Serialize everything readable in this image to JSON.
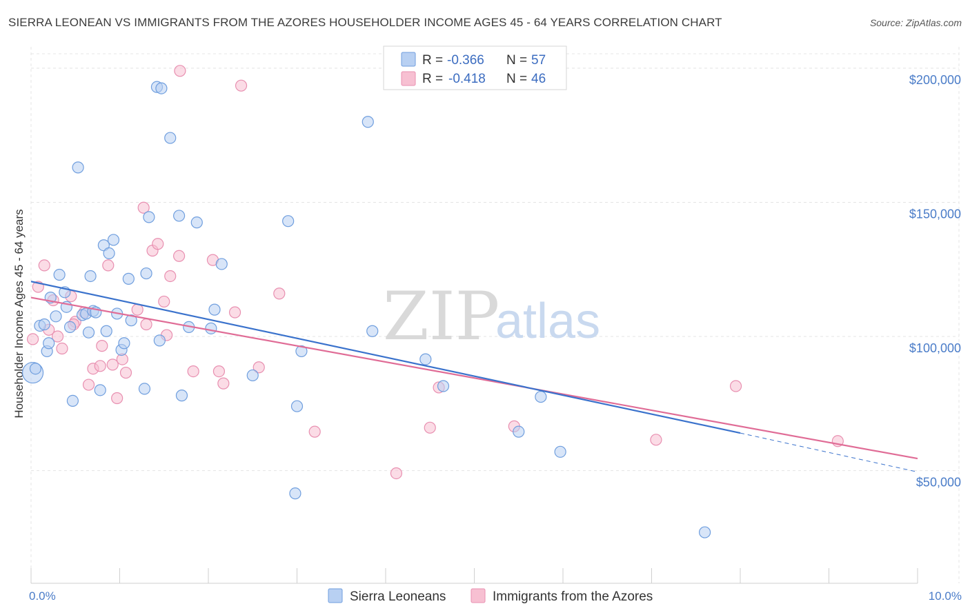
{
  "title": "SIERRA LEONEAN VS IMMIGRANTS FROM THE AZORES HOUSEHOLDER INCOME AGES 45 - 64 YEARS CORRELATION CHART",
  "source": "Source: ZipAtlas.com",
  "watermark": {
    "zip": "ZIP",
    "atlas": "atlas"
  },
  "legend": {
    "rows": [
      {
        "r_label": "R = ",
        "r_value": "-0.366",
        "n_label": "N = ",
        "n_value": "57"
      },
      {
        "r_label": "R = ",
        "r_value": "-0.418",
        "n_label": "N = ",
        "n_value": "46"
      }
    ]
  },
  "bottom_legend": [
    "Sierra Leoneans",
    "Immigrants from the Azores"
  ],
  "chart_data": {
    "type": "scatter",
    "title": "SIERRA LEONEAN VS IMMIGRANTS FROM THE AZORES HOUSEHOLDER INCOME AGES 45 - 64 YEARS CORRELATION CHART",
    "xlabel": "",
    "ylabel": "Householder Income Ages 45 - 64 years",
    "xlim": [
      0,
      10
    ],
    "ylim": [
      8000,
      210000
    ],
    "x_tick_labels": [
      "0.0%",
      "10.0%"
    ],
    "y_ticks": [
      50000,
      100000,
      150000,
      200000
    ],
    "y_tick_labels": [
      "$50,000",
      "$100,000",
      "$150,000",
      "$200,000"
    ],
    "grid": true,
    "legend_position": "top-center",
    "colors": {
      "sierra_fill": "#b8d0f2",
      "sierra_stroke": "#6f9ede",
      "sierra_line": "#3a72cc",
      "azores_fill": "#f7c0d2",
      "azores_stroke": "#e88fb0",
      "azores_line": "#e06c96"
    },
    "series": [
      {
        "name": "Sierra Leoneans",
        "points": [
          [
            0.02,
            86500
          ],
          [
            0.05,
            88000
          ],
          [
            0.1,
            104000
          ],
          [
            0.15,
            104500
          ],
          [
            0.18,
            94500
          ],
          [
            0.2,
            97500
          ],
          [
            0.22,
            114500
          ],
          [
            0.28,
            107500
          ],
          [
            0.32,
            123000
          ],
          [
            0.38,
            116500
          ],
          [
            0.4,
            111000
          ],
          [
            0.44,
            103500
          ],
          [
            0.47,
            76000
          ],
          [
            0.53,
            163000
          ],
          [
            0.58,
            108000
          ],
          [
            0.62,
            108500
          ],
          [
            0.65,
            101500
          ],
          [
            0.67,
            122500
          ],
          [
            0.7,
            109500
          ],
          [
            0.73,
            109000
          ],
          [
            0.78,
            80000
          ],
          [
            0.82,
            134000
          ],
          [
            0.85,
            102000
          ],
          [
            0.88,
            131000
          ],
          [
            0.93,
            136000
          ],
          [
            0.97,
            108500
          ],
          [
            1.02,
            95000
          ],
          [
            1.05,
            97500
          ],
          [
            1.1,
            121500
          ],
          [
            1.13,
            106000
          ],
          [
            1.28,
            80500
          ],
          [
            1.3,
            123500
          ],
          [
            1.33,
            144500
          ],
          [
            1.42,
            193000
          ],
          [
            1.47,
            192500
          ],
          [
            1.45,
            98500
          ],
          [
            1.57,
            174000
          ],
          [
            1.67,
            145000
          ],
          [
            1.7,
            78000
          ],
          [
            1.78,
            103500
          ],
          [
            1.87,
            142500
          ],
          [
            2.03,
            103000
          ],
          [
            2.07,
            110000
          ],
          [
            2.15,
            127000
          ],
          [
            2.5,
            85500
          ],
          [
            2.9,
            143000
          ],
          [
            3.0,
            74000
          ],
          [
            2.98,
            41500
          ],
          [
            3.05,
            94500
          ],
          [
            3.85,
            102000
          ],
          [
            3.8,
            180000
          ],
          [
            4.45,
            91500
          ],
          [
            4.65,
            81500
          ],
          [
            5.5,
            64500
          ],
          [
            5.75,
            77500
          ],
          [
            5.97,
            57000
          ],
          [
            7.6,
            27000
          ]
        ],
        "trend": {
          "x": [
            0,
            8.0
          ],
          "y": [
            120500,
            64000
          ],
          "dashed_to": [
            10.0,
            49500
          ]
        }
      },
      {
        "name": "Immigrants from the Azores",
        "points": [
          [
            0.02,
            99000
          ],
          [
            0.08,
            118500
          ],
          [
            0.15,
            126500
          ],
          [
            0.2,
            102500
          ],
          [
            0.25,
            113500
          ],
          [
            0.3,
            100000
          ],
          [
            0.35,
            95500
          ],
          [
            0.45,
            115000
          ],
          [
            0.5,
            105500
          ],
          [
            0.6,
            109000
          ],
          [
            0.65,
            82000
          ],
          [
            0.7,
            88000
          ],
          [
            0.78,
            89000
          ],
          [
            0.8,
            96500
          ],
          [
            0.87,
            126500
          ],
          [
            0.92,
            89500
          ],
          [
            0.97,
            77000
          ],
          [
            1.03,
            91500
          ],
          [
            1.07,
            86500
          ],
          [
            1.2,
            110000
          ],
          [
            1.27,
            148000
          ],
          [
            1.3,
            104500
          ],
          [
            1.37,
            132000
          ],
          [
            1.43,
            134500
          ],
          [
            1.5,
            113000
          ],
          [
            1.53,
            100500
          ],
          [
            1.57,
            122500
          ],
          [
            1.67,
            130000
          ],
          [
            1.83,
            87000
          ],
          [
            2.05,
            128500
          ],
          [
            2.12,
            87000
          ],
          [
            2.17,
            82500
          ],
          [
            2.3,
            109000
          ],
          [
            2.37,
            193500
          ],
          [
            2.57,
            88500
          ],
          [
            2.8,
            116000
          ],
          [
            1.68,
            199000
          ],
          [
            3.2,
            64500
          ],
          [
            4.12,
            49000
          ],
          [
            4.5,
            66000
          ],
          [
            4.6,
            81000
          ],
          [
            5.45,
            66500
          ],
          [
            7.05,
            61500
          ],
          [
            7.95,
            81500
          ],
          [
            9.1,
            61000
          ],
          [
            0.48,
            104500
          ]
        ],
        "trend": {
          "x": [
            0,
            10.0
          ],
          "y": [
            114500,
            54500
          ]
        }
      }
    ]
  }
}
